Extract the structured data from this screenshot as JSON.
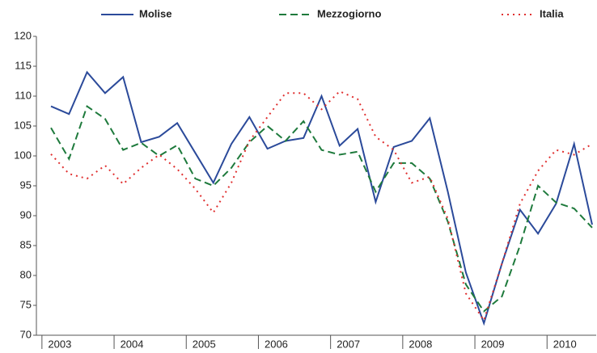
{
  "chart_data": {
    "type": "line",
    "categories": [
      "2003",
      null,
      null,
      null,
      "2004",
      null,
      null,
      null,
      "2005",
      null,
      null,
      null,
      "2006",
      null,
      null,
      null,
      "2007",
      null,
      null,
      null,
      "2008",
      null,
      null,
      null,
      "2009",
      null,
      null,
      null,
      "2010",
      null,
      null
    ],
    "series": [
      {
        "name": "Molise",
        "color": "#2b4a9a",
        "dash": "solid",
        "values": [
          108.3,
          107,
          114,
          110.5,
          113.2,
          102.3,
          103.2,
          105.5,
          100.5,
          95.5,
          102,
          106.5,
          101.2,
          102.5,
          103,
          110,
          101.7,
          104.5,
          92.3,
          101.5,
          102.5,
          106.3,
          94,
          80.5,
          72,
          82,
          91,
          87,
          92,
          102,
          88.5
        ]
      },
      {
        "name": "Mezzogiorno",
        "color": "#1e7a3c",
        "dash": "dash",
        "values": [
          104.7,
          99.5,
          108.3,
          106.2,
          101,
          102.2,
          100,
          101.8,
          96.2,
          95,
          98,
          102.3,
          105,
          102.5,
          105.8,
          101,
          100.2,
          100.7,
          94,
          98.8,
          98.8,
          96.2,
          89,
          78.5,
          74,
          76.5,
          85,
          95,
          92.2,
          91.2,
          88
        ]
      },
      {
        "name": "Italia",
        "color": "#e03030",
        "dash": "dot",
        "values": [
          100.3,
          97,
          96.2,
          98.4,
          95.3,
          98,
          100.2,
          97.8,
          94.5,
          90.5,
          95.5,
          102.5,
          106.5,
          110.5,
          110.5,
          107.8,
          110.8,
          109.5,
          103.2,
          101,
          95.5,
          96.5,
          89.5,
          77,
          72.5,
          82,
          92,
          97.5,
          101,
          100.2,
          102
        ]
      }
    ],
    "ylim": [
      70,
      120
    ],
    "yticks": [
      70,
      75,
      80,
      85,
      90,
      95,
      100,
      105,
      110,
      115,
      120
    ],
    "grid": false
  }
}
